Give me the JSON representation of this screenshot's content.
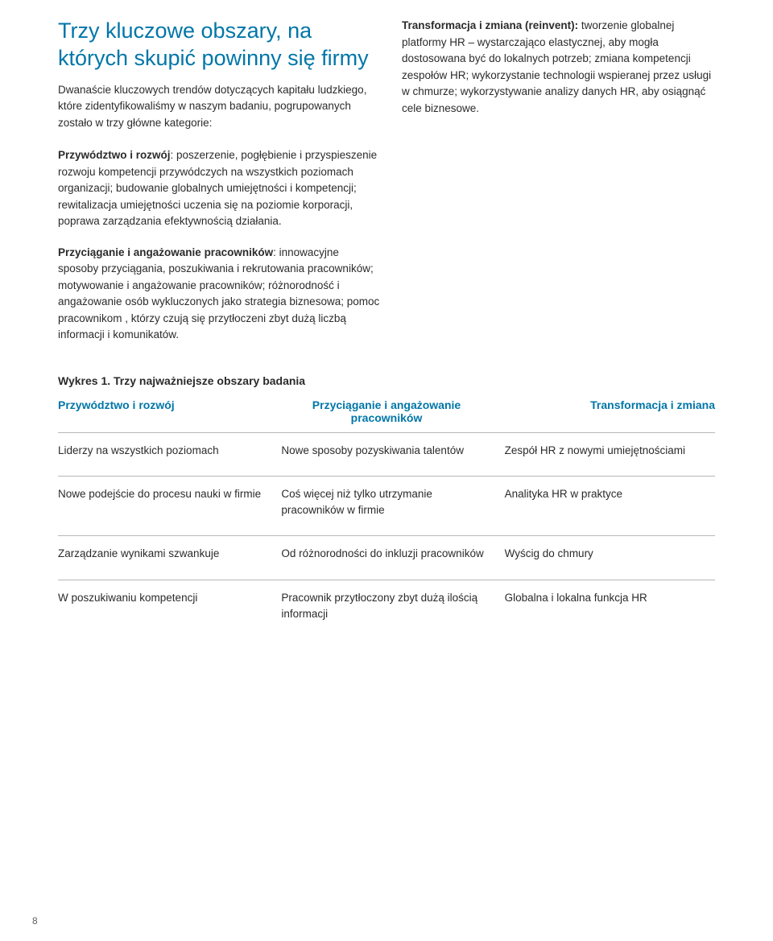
{
  "title": "Trzy kluczowe obszary, na których skupić powinny się firmy",
  "intro": "Dwanaście kluczowych trendów dotyczących kapitału ludzkiego, które zidentyfikowaliśmy w naszym badaniu, pogrupowanych zostało w trzy główne kategorie:",
  "sections": {
    "leadership": {
      "label": "Przywództwo i rozwój",
      "text": ": poszerzenie, pogłębienie i przyspieszenie rozwoju kompetencji przywódczych na wszystkich poziomach organizacji; budowanie globalnych umiejętności i kompetencji; rewitalizacja umiejętności uczenia się na poziomie korporacji, poprawa zarządzania efektywnością działania."
    },
    "attract": {
      "label": "Przyciąganie i angażowanie pracowników",
      "text": ": innowacyjne sposoby przyciągania, poszukiwania i rekrutowania pracowników; motywowanie i angażowanie pracowników; różnorodność i angażowanie osób wykluczonych jako strategia biznesowa; pomoc pracownikom , którzy czują się przytłoczeni zbyt dużą liczbą informacji i komunikatów."
    },
    "transform": {
      "label": "Transformacja i zmiana (reinvent):",
      "text": " tworzenie globalnej platformy HR – wystarczająco elastycznej, aby mogła dostosowana być do lokalnych potrzeb; zmiana kompetencji zespołów HR; wykorzystanie technologii wspieranej przez usługi w chmurze; wykorzystywanie analizy danych HR, aby osiągnąć cele biznesowe."
    }
  },
  "chart": {
    "title": "Wykres 1. Trzy najważniejsze obszary badania",
    "headers": {
      "col1": "Przywództwo i rozwój",
      "col2": "Przyciąganie i angażowanie pracowników",
      "col3": "Transformacja i zmiana"
    },
    "rows": [
      {
        "c1": "Liderzy na wszystkich poziomach",
        "c2": "Nowe sposoby pozyskiwania talentów",
        "c3": "Zespół HR z nowymi umiejętnościami"
      },
      {
        "c1": "Nowe podejście do procesu nauki w firmie",
        "c2": "Coś więcej niż tylko utrzymanie pracowników w firmie",
        "c3": "Analityka HR w praktyce"
      },
      {
        "c1": "Zarządzanie wynikami szwankuje",
        "c2": "Od różnorodności do inkluzji pracowników",
        "c3": "Wyścig do chmury"
      },
      {
        "c1": "W poszukiwaniu kompetencji",
        "c2": "Pracownik przytłoczony zbyt dużą ilością informacji",
        "c3": "Globalna i lokalna funkcja HR"
      }
    ]
  },
  "pageNumber": "8",
  "colors": {
    "accent": "#0076a8",
    "text": "#2b2b2b",
    "rule": "#b8b8b8",
    "background": "#ffffff"
  }
}
